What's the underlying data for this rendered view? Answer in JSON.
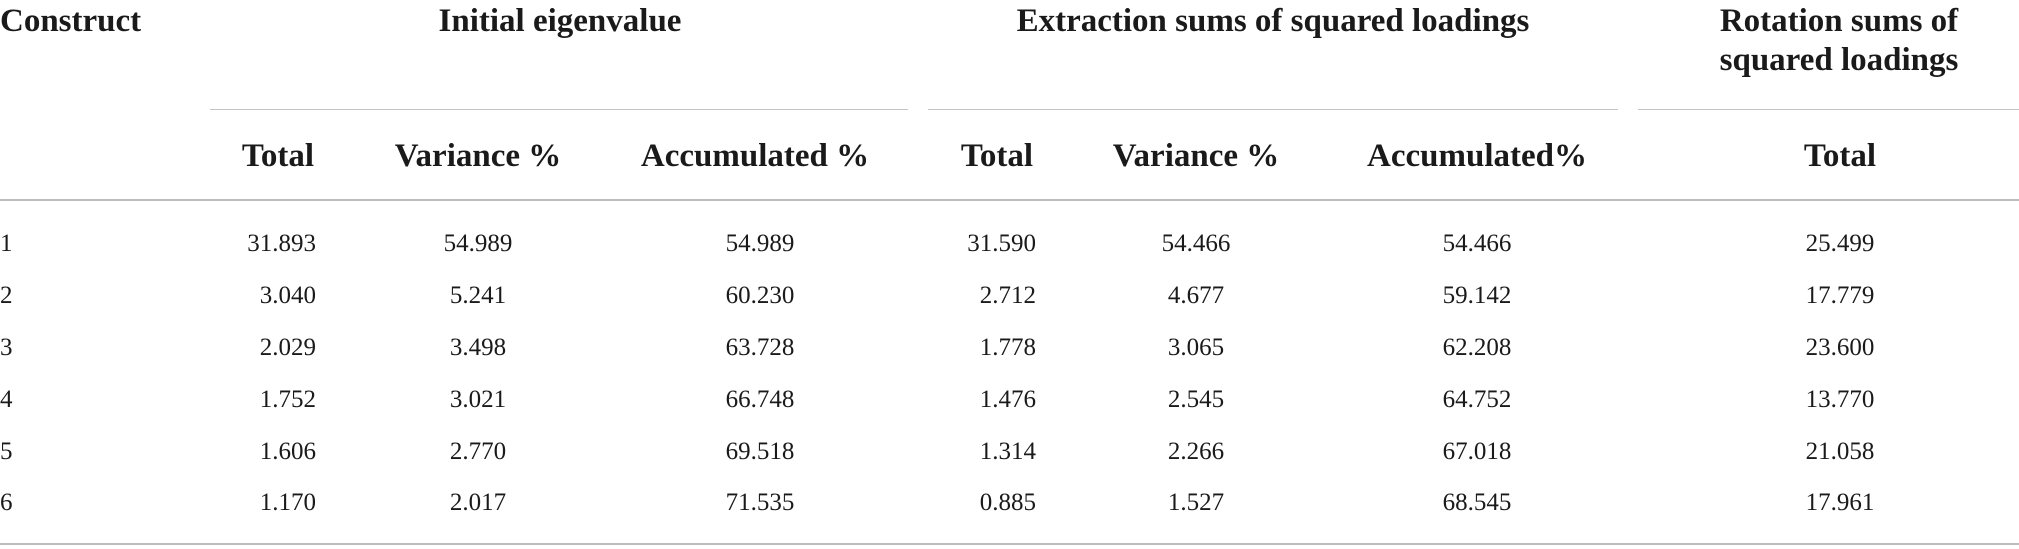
{
  "table": {
    "header": {
      "construct": "Construct",
      "initial_eigenvalue": "Initial eigenvalue",
      "extraction": "Extraction sums of squared loadings",
      "rotation_line1": "Rotation sums of",
      "rotation_line2": "squared loadings"
    },
    "subheader": {
      "ie_total": "Total",
      "ie_variance": "Variance %",
      "ie_accumulated": "Accumulated %",
      "ex_total": "Total",
      "ex_variance": "Variance %",
      "ex_accumulated": "Accumulated%",
      "rot_total": "Total"
    },
    "rows": [
      {
        "construct": "1",
        "ie_total": "31.893",
        "ie_variance": "54.989",
        "ie_accumulated": "54.989",
        "ex_total": "31.590",
        "ex_variance": "54.466",
        "ex_accumulated": "54.466",
        "rot_total": "25.499"
      },
      {
        "construct": "2",
        "ie_total": "3.040",
        "ie_variance": "5.241",
        "ie_accumulated": "60.230",
        "ex_total": "2.712",
        "ex_variance": "4.677",
        "ex_accumulated": "59.142",
        "rot_total": "17.779"
      },
      {
        "construct": "3",
        "ie_total": "2.029",
        "ie_variance": "3.498",
        "ie_accumulated": "63.728",
        "ex_total": "1.778",
        "ex_variance": "3.065",
        "ex_accumulated": "62.208",
        "rot_total": "23.600"
      },
      {
        "construct": "4",
        "ie_total": "1.752",
        "ie_variance": "3.021",
        "ie_accumulated": "66.748",
        "ex_total": "1.476",
        "ex_variance": "2.545",
        "ex_accumulated": "64.752",
        "rot_total": "13.770"
      },
      {
        "construct": "5",
        "ie_total": "1.606",
        "ie_variance": "2.770",
        "ie_accumulated": "69.518",
        "ex_total": "1.314",
        "ex_variance": "2.266",
        "ex_accumulated": "67.018",
        "rot_total": "21.058"
      },
      {
        "construct": "6",
        "ie_total": "1.170",
        "ie_variance": "2.017",
        "ie_accumulated": "71.535",
        "ex_total": "0.885",
        "ex_variance": "1.527",
        "ex_accumulated": "68.545",
        "rot_total": "17.961"
      }
    ]
  }
}
